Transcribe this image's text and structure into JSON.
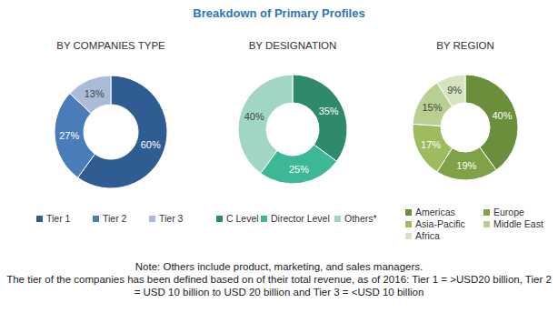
{
  "title": "Breakdown of Primary Profiles",
  "chart_data": [
    {
      "type": "donut",
      "title": "BY COMPANIES TYPE",
      "categories": [
        "Tier 1",
        "Tier 2",
        "Tier 3"
      ],
      "values": [
        60,
        27,
        13
      ],
      "value_labels": [
        "60%",
        "27%",
        "13%"
      ],
      "colors": [
        "#2f5d93",
        "#4a7cba",
        "#a9bbd9"
      ],
      "data_labels": true,
      "legend": "bottom"
    },
    {
      "type": "donut",
      "title": "BY DESIGNATION",
      "categories": [
        "C Level",
        "Director Level",
        "Others*"
      ],
      "values": [
        35,
        25,
        40
      ],
      "value_labels": [
        "35%",
        "25%",
        "40%"
      ],
      "colors": [
        "#2f8a6c",
        "#3cb896",
        "#a2d6c4"
      ],
      "data_labels": true,
      "legend": "bottom"
    },
    {
      "type": "donut",
      "title": "BY REGION",
      "categories": [
        "Americas",
        "Europe",
        "Asia-Pacific",
        "Middle East",
        "Africa"
      ],
      "values": [
        40,
        19,
        17,
        15,
        9
      ],
      "value_labels": [
        "40%",
        "19%",
        "17%",
        "15%",
        "9%"
      ],
      "colors": [
        "#6a8e3a",
        "#7fa246",
        "#9dbc5e",
        "#b9cf92",
        "#d6e3c1"
      ],
      "data_labels": true,
      "legend": "bottom"
    }
  ],
  "notes": [
    "Note: Others include product, marketing, and sales managers.",
    "The tier of the companies has been defined based on of their total revenue, as of 2016: Tier 1 = >USD20 billion, Tier 2 = USD 10 billion to USD 20 billion and Tier 3 = <USD 10 billion"
  ]
}
